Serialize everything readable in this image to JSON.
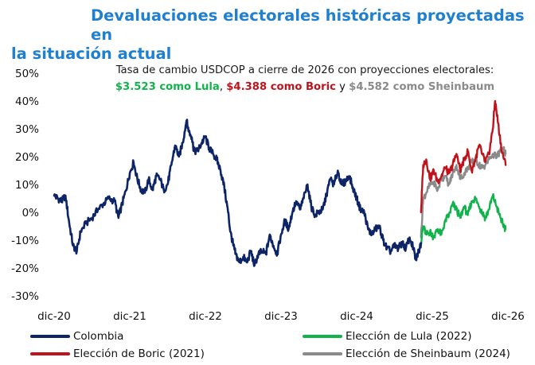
{
  "title_line1": "Devaluaciones electorales históricas proyectadas en",
  "title_line2": "la situación actual",
  "chart_data": {
    "type": "line",
    "subtitle_line1": "Tasa de cambio USDCOP a cierre de 2026 con proyecciones electorales:",
    "subtitle_parts": {
      "lula": "$3.523 como Lula",
      "sep1": ", ",
      "boric": "$4.388 como Boric",
      "sep2": " y ",
      "sheinbaum": "$4.582 como Sheinbaum"
    },
    "x_ticks": [
      "dic-20",
      "dic-21",
      "dic-22",
      "dic-23",
      "dic-24",
      "dic-25",
      "dic-26"
    ],
    "x_range": [
      "dic-20",
      "dic-26"
    ],
    "y_ticks": [
      "50%",
      "40%",
      "30%",
      "20%",
      "10%",
      "0%",
      "-10%",
      "-20%",
      "-30%"
    ],
    "y_tick_values": [
      50,
      40,
      30,
      20,
      10,
      0,
      -10,
      -20,
      -30
    ],
    "ylim": [
      -30,
      50
    ],
    "grid": false,
    "legend_position": "bottom",
    "series": [
      {
        "name": "Colombia",
        "color": "#0d2466",
        "points": [
          [
            0.0,
            6
          ],
          [
            0.05,
            5
          ],
          [
            0.1,
            4
          ],
          [
            0.15,
            6
          ],
          [
            0.2,
            -4
          ],
          [
            0.25,
            -12
          ],
          [
            0.3,
            -14
          ],
          [
            0.35,
            -7
          ],
          [
            0.42,
            -4
          ],
          [
            0.5,
            -2
          ],
          [
            0.58,
            1
          ],
          [
            0.65,
            3
          ],
          [
            0.72,
            5
          ],
          [
            0.8,
            4
          ],
          [
            0.85,
            -2
          ],
          [
            0.9,
            3
          ],
          [
            0.95,
            8
          ],
          [
            1.0,
            14
          ],
          [
            1.05,
            18
          ],
          [
            1.1,
            12
          ],
          [
            1.15,
            8
          ],
          [
            1.2,
            7
          ],
          [
            1.25,
            12
          ],
          [
            1.3,
            8
          ],
          [
            1.35,
            13
          ],
          [
            1.4,
            12
          ],
          [
            1.45,
            8
          ],
          [
            1.5,
            10
          ],
          [
            1.55,
            17
          ],
          [
            1.6,
            24
          ],
          [
            1.65,
            20
          ],
          [
            1.7,
            25
          ],
          [
            1.75,
            33
          ],
          [
            1.78,
            29
          ],
          [
            1.82,
            27
          ],
          [
            1.85,
            22
          ],
          [
            1.9,
            22
          ],
          [
            1.95,
            25
          ],
          [
            2.0,
            27
          ],
          [
            2.05,
            23
          ],
          [
            2.1,
            21
          ],
          [
            2.15,
            19
          ],
          [
            2.2,
            15
          ],
          [
            2.25,
            9
          ],
          [
            2.3,
            0
          ],
          [
            2.33,
            -7
          ],
          [
            2.37,
            -12
          ],
          [
            2.4,
            -15
          ],
          [
            2.45,
            -18
          ],
          [
            2.5,
            -16
          ],
          [
            2.55,
            -18
          ],
          [
            2.6,
            -14
          ],
          [
            2.65,
            -19
          ],
          [
            2.7,
            -15
          ],
          [
            2.75,
            -14
          ],
          [
            2.8,
            -15
          ],
          [
            2.85,
            -8
          ],
          [
            2.9,
            -12
          ],
          [
            2.95,
            -15
          ],
          [
            3.0,
            -8
          ],
          [
            3.05,
            -3
          ],
          [
            3.1,
            -6
          ],
          [
            3.15,
            0
          ],
          [
            3.2,
            4
          ],
          [
            3.25,
            1
          ],
          [
            3.3,
            5
          ],
          [
            3.35,
            10
          ],
          [
            3.4,
            2
          ],
          [
            3.45,
            -1
          ],
          [
            3.5,
            0
          ],
          [
            3.55,
            1
          ],
          [
            3.6,
            6
          ],
          [
            3.65,
            12
          ],
          [
            3.7,
            10
          ],
          [
            3.75,
            15
          ],
          [
            3.8,
            10
          ],
          [
            3.85,
            11
          ],
          [
            3.9,
            13
          ],
          [
            3.95,
            9
          ],
          [
            4.0,
            5
          ],
          [
            4.05,
            1
          ],
          [
            4.1,
            0
          ],
          [
            4.15,
            -6
          ],
          [
            4.2,
            -8
          ],
          [
            4.25,
            -6
          ],
          [
            4.3,
            -5
          ],
          [
            4.35,
            -10
          ],
          [
            4.4,
            -13
          ],
          [
            4.45,
            -14
          ],
          [
            4.5,
            -12
          ],
          [
            4.55,
            -13
          ],
          [
            4.6,
            -11
          ],
          [
            4.65,
            -13
          ],
          [
            4.7,
            -9
          ],
          [
            4.75,
            -13
          ],
          [
            4.78,
            -17
          ],
          [
            4.82,
            -14
          ],
          [
            4.85,
            -11
          ]
        ]
      },
      {
        "name": "Elección de Lula (2022)",
        "color": "#10b44a",
        "points": [
          [
            4.85,
            -11
          ],
          [
            4.88,
            -5
          ],
          [
            4.92,
            -8
          ],
          [
            4.97,
            -7
          ],
          [
            5.02,
            -9
          ],
          [
            5.07,
            -6
          ],
          [
            5.12,
            -8
          ],
          [
            5.17,
            -3
          ],
          [
            5.22,
            -1
          ],
          [
            5.27,
            3
          ],
          [
            5.32,
            1
          ],
          [
            5.37,
            -2
          ],
          [
            5.42,
            2
          ],
          [
            5.47,
            -1
          ],
          [
            5.52,
            4
          ],
          [
            5.57,
            5
          ],
          [
            5.62,
            2
          ],
          [
            5.66,
            0
          ],
          [
            5.7,
            -2
          ],
          [
            5.75,
            1
          ],
          [
            5.8,
            6
          ],
          [
            5.85,
            2
          ],
          [
            5.9,
            -2
          ],
          [
            5.93,
            -4
          ],
          [
            5.97,
            -6
          ]
        ]
      },
      {
        "name": "Elección de Boric (2021)",
        "color": "#c0141c",
        "points": [
          [
            4.85,
            0
          ],
          [
            4.88,
            17
          ],
          [
            4.92,
            19
          ],
          [
            4.97,
            12
          ],
          [
            5.02,
            15
          ],
          [
            5.07,
            11
          ],
          [
            5.12,
            13
          ],
          [
            5.17,
            16
          ],
          [
            5.22,
            14
          ],
          [
            5.27,
            17
          ],
          [
            5.32,
            21
          ],
          [
            5.37,
            15
          ],
          [
            5.42,
            19
          ],
          [
            5.47,
            22
          ],
          [
            5.52,
            15
          ],
          [
            5.57,
            19
          ],
          [
            5.62,
            24
          ],
          [
            5.66,
            21
          ],
          [
            5.7,
            18
          ],
          [
            5.75,
            21
          ],
          [
            5.8,
            30
          ],
          [
            5.83,
            40
          ],
          [
            5.87,
            32
          ],
          [
            5.92,
            22
          ],
          [
            5.97,
            17
          ]
        ]
      },
      {
        "name": "Elección de Sheinbaum (2024)",
        "color": "#8a8a8a",
        "points": [
          [
            4.85,
            -9
          ],
          [
            4.88,
            5
          ],
          [
            4.92,
            7
          ],
          [
            4.97,
            10
          ],
          [
            5.02,
            11
          ],
          [
            5.07,
            8
          ],
          [
            5.12,
            12
          ],
          [
            5.17,
            13
          ],
          [
            5.22,
            10
          ],
          [
            5.27,
            14
          ],
          [
            5.32,
            17
          ],
          [
            5.37,
            12
          ],
          [
            5.42,
            14
          ],
          [
            5.47,
            16
          ],
          [
            5.52,
            18
          ],
          [
            5.57,
            19
          ],
          [
            5.62,
            17
          ],
          [
            5.66,
            16
          ],
          [
            5.7,
            17
          ],
          [
            5.75,
            19
          ],
          [
            5.8,
            21
          ],
          [
            5.85,
            20
          ],
          [
            5.9,
            22
          ],
          [
            5.94,
            23
          ],
          [
            5.97,
            21
          ]
        ]
      }
    ]
  }
}
